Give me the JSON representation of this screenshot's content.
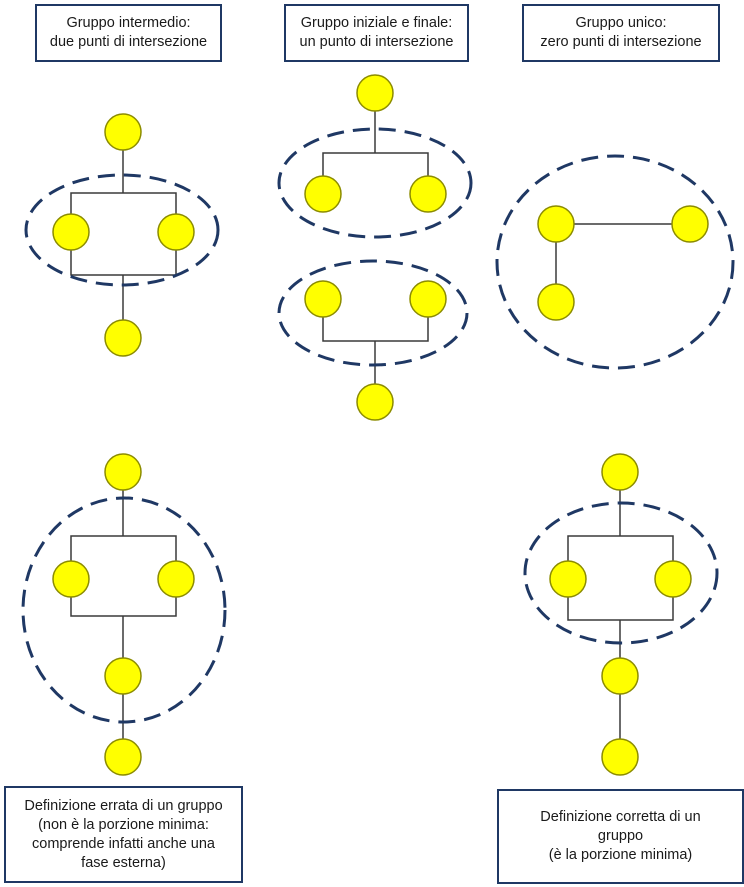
{
  "colors": {
    "node_fill": "#ffff00",
    "node_stroke": "#8c8c00",
    "line": "#3a3a3a",
    "ellipse": "#1f3864",
    "box_border": "#1f3864"
  },
  "labels": {
    "intermediate": {
      "line1": "Gruppo intermedio:",
      "line2": "due punti di intersezione"
    },
    "initial_final": {
      "line1": "Gruppo iniziale e finale:",
      "line2": "un punto di intersezione"
    },
    "single": {
      "line1": "Gruppo unico:",
      "line2": "zero punti di intersezione"
    },
    "wrong": {
      "line1": "Definizione errata di un gruppo",
      "line2": "(non è la porzione minima:",
      "line3": "comprende infatti anche una",
      "line4": "fase esterna)"
    },
    "correct": {
      "line1": "Definizione corretta di un",
      "line2": "gruppo",
      "line3": "(è la porzione minima)"
    }
  }
}
